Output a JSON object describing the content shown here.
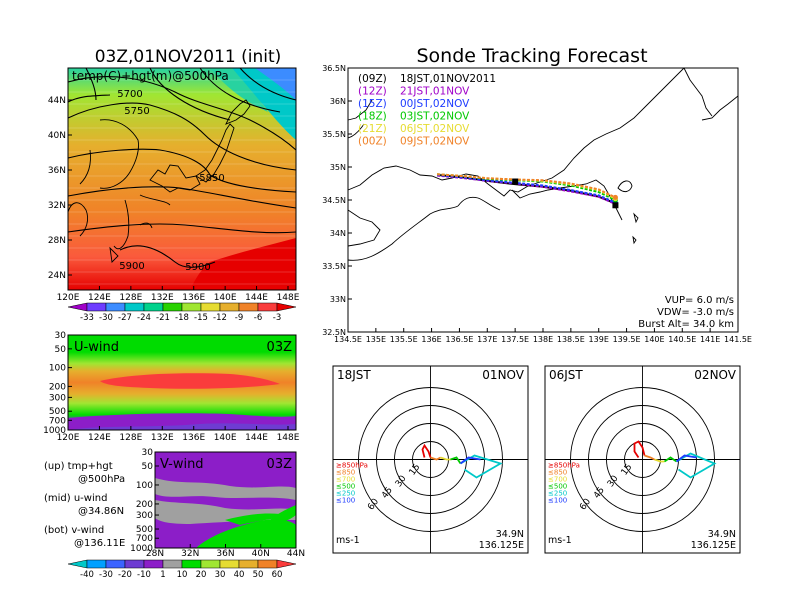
{
  "left_title": "03Z,01NOV2011 (init)",
  "right_title": "Sonde Tracking Forecast",
  "upper_map": {
    "label": "temp(C)+hgt(m)@500hPa",
    "contours": [
      "5700",
      "5750",
      "5850",
      "5900",
      "5900"
    ],
    "x_ticks": [
      "120E",
      "124E",
      "128E",
      "132E",
      "136E",
      "140E",
      "144E",
      "148E"
    ],
    "y_ticks": [
      "44N",
      "40N",
      "36N",
      "32N",
      "28N",
      "24N"
    ],
    "colorbar": [
      "-33",
      "-30",
      "-27",
      "-24",
      "-21",
      "-18",
      "-15",
      "-12",
      "-9",
      "-6",
      "-3"
    ],
    "colorbar_colors": [
      "#a000c8",
      "#6e3cff",
      "#3c8cff",
      "#00c8c8",
      "#00d28c",
      "#28d200",
      "#a0e632",
      "#e6dc32",
      "#e6af2d",
      "#f08228",
      "#fa3c3c",
      "#e60000"
    ]
  },
  "u_wind": {
    "label": "U-wind",
    "time": "03Z",
    "y_ticks": [
      "30",
      "50",
      "100",
      "200",
      "300",
      "500",
      "700",
      "1000"
    ],
    "x_ticks": [
      "120E",
      "124E",
      "128E",
      "132E",
      "136E",
      "140E",
      "144E",
      "148E"
    ]
  },
  "v_wind": {
    "label": "V-wind",
    "time": "03Z",
    "y_ticks": [
      "30",
      "50",
      "100",
      "200",
      "300",
      "500",
      "700",
      "1000"
    ],
    "x_ticks": [
      "28N",
      "32N",
      "36N",
      "40N",
      "44N"
    ]
  },
  "wind_colorbar": {
    "labels": [
      "-40",
      "-30",
      "-20",
      "-10",
      "1",
      "10",
      "20",
      "30",
      "40",
      "50",
      "60"
    ],
    "colors": [
      "#00c8c8",
      "#00a0ff",
      "#3c64ff",
      "#6e3cd2",
      "#8c1ec8",
      "#a0a0a0",
      "#00dc00",
      "#a0e632",
      "#e6dc32",
      "#e6af2d",
      "#f08228",
      "#fa3c3c"
    ]
  },
  "legend_notes": [
    {
      "a": "(up) tmp+hgt",
      "b": "@500hPa"
    },
    {
      "a": "(mid) u-wind",
      "b": "@34.86N"
    },
    {
      "a": "(bot) v-wind",
      "b": "@136.11E"
    }
  ],
  "track_map": {
    "x_ticks": [
      "134.5E",
      "135E",
      "135.5E",
      "136E",
      "136.5E",
      "137E",
      "137.5E",
      "138E",
      "138.5E",
      "139E",
      "139.5E",
      "140E",
      "140.5E",
      "141E",
      "141.5E"
    ],
    "y_ticks": [
      "36.5N",
      "36N",
      "35.5N",
      "35N",
      "34.5N",
      "34N",
      "33.5N",
      "33N",
      "32.5N"
    ],
    "legend": [
      {
        "code": "(09Z)",
        "text": "18JST,01NOV2011",
        "color": "#000000"
      },
      {
        "code": "(12Z)",
        "text": "21JST,01NOV",
        "color": "#a000c8"
      },
      {
        "code": "(15Z)",
        "text": "00JST,02NOV",
        "color": "#1e3cff"
      },
      {
        "code": "(18Z)",
        "text": "03JST,02NOV",
        "color": "#00c800"
      },
      {
        "code": "(21Z)",
        "text": "06JST,02NOV",
        "color": "#e6dc32"
      },
      {
        "code": "(00Z)",
        "text": "09JST,02NOV",
        "color": "#f08228"
      }
    ],
    "vup": "VUP=  6.0  m/s",
    "vdw": "VDW= -3.0  m/s",
    "burst": "Burst Alt=  34.0  km"
  },
  "chart_data": {
    "type": "line",
    "title": "Sonde Tracking Forecast",
    "xlim": [
      134.5,
      141.5
    ],
    "ylim": [
      32.5,
      36.5
    ],
    "series": [
      {
        "name": "(09Z) 18JST,01NOV2011",
        "x": [
          136.1,
          136.6,
          137.0,
          137.5,
          138.0,
          138.5,
          139.0,
          139.3
        ],
        "y": [
          34.88,
          34.84,
          34.79,
          34.74,
          34.7,
          34.64,
          34.55,
          34.45
        ]
      },
      {
        "name": "(12Z) 21JST,01NOV",
        "x": [
          136.1,
          136.6,
          137.0,
          137.5,
          138.0,
          138.5,
          139.0,
          139.3
        ],
        "y": [
          34.87,
          34.83,
          34.79,
          34.75,
          34.7,
          34.63,
          34.55,
          34.44
        ]
      },
      {
        "name": "(15Z) 00JST,02NOV",
        "x": [
          136.1,
          136.6,
          137.0,
          137.5,
          138.0,
          138.5,
          139.0,
          139.3
        ],
        "y": [
          34.88,
          34.84,
          34.8,
          34.76,
          34.72,
          34.65,
          34.57,
          34.46
        ]
      },
      {
        "name": "(18Z) 03JST,02NOV",
        "x": [
          136.1,
          136.6,
          137.0,
          137.5,
          138.0,
          138.5,
          139.0,
          139.3
        ],
        "y": [
          34.89,
          34.86,
          34.82,
          34.8,
          34.78,
          34.72,
          34.62,
          34.5
        ]
      },
      {
        "name": "(21Z) 06JST,02NOV",
        "x": [
          136.1,
          136.6,
          137.0,
          137.5,
          138.0,
          138.5,
          139.0,
          139.3
        ],
        "y": [
          34.89,
          34.86,
          34.83,
          34.81,
          34.79,
          34.74,
          34.65,
          34.52
        ]
      },
      {
        "name": "(00Z) 09JST,02NOV",
        "x": [
          136.1,
          136.6,
          137.0,
          137.5,
          138.0,
          138.5,
          139.0,
          139.3
        ],
        "y": [
          34.89,
          34.86,
          34.83,
          34.81,
          34.8,
          34.75,
          34.66,
          34.54
        ]
      }
    ]
  },
  "hodo_left": {
    "time": "18JST",
    "date": "01NOV",
    "rings": [
      "15",
      "30",
      "45",
      "60"
    ],
    "levels": [
      "≥850hPa",
      "≤850",
      "≤700",
      "≤500",
      "≤250",
      "≤100"
    ],
    "level_colors": [
      "#e60000",
      "#f08228",
      "#e6dc32",
      "#00c800",
      "#00c8c8",
      "#1e3cff"
    ],
    "unit": "ms-1",
    "lat": "34.9N",
    "lon": "136.125E"
  },
  "hodo_right": {
    "time": "06JST",
    "date": "02NOV",
    "rings": [
      "15",
      "30",
      "45",
      "60"
    ],
    "levels": [
      "≥850hPa",
      "≤850",
      "≤700",
      "≤500",
      "≤250",
      "≤100"
    ],
    "level_colors": [
      "#e60000",
      "#f08228",
      "#e6dc32",
      "#00c800",
      "#00c8c8",
      "#1e3cff"
    ],
    "unit": "ms-1",
    "lat": "34.9N",
    "lon": "136.125E"
  }
}
